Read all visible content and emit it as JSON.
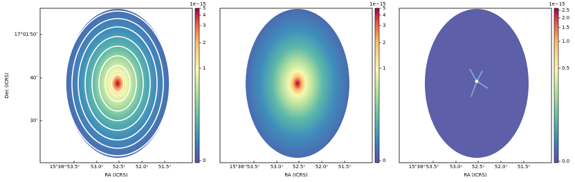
{
  "panels": [
    {
      "x_ticks": [
        "15ʰ38ᵐ53.5ˢ",
        "53.0ˢ",
        "52.5ˢ",
        "52.0ˢ",
        "51.5ˢ"
      ],
      "x_label": "RA (ICRS)",
      "y_ticks": [
        "17°01′50″",
        "40″",
        "30″"
      ],
      "y_label": "Dec (ICRS)",
      "colorbar_scale": "1e−15",
      "colorbar_ticks": [
        "5",
        "4",
        "3",
        "2",
        "1",
        "0"
      ]
    },
    {
      "x_ticks": [
        "15ʰ38ᵐ53.5ˢ",
        "53.0ˢ",
        "52.5ˢ",
        "52.0ˢ",
        "51.5ˢ"
      ],
      "x_label": "RA (ICRS)",
      "colorbar_scale": "1e−15",
      "colorbar_ticks": [
        "5",
        "4",
        "3",
        "2",
        "1",
        "0"
      ]
    },
    {
      "x_ticks": [
        "15ʰ38ᵐ53.5ˢ",
        "53.0ˢ",
        "52.5ˢ",
        "52.0ˢ",
        "51.5ˢ"
      ],
      "x_label": "RA (ICRS)",
      "colorbar_scale": "1e−15",
      "colorbar_ticks": [
        "2.5",
        "2.0",
        "1.5",
        "1.0",
        "0.5",
        "0.0"
      ]
    }
  ]
}
